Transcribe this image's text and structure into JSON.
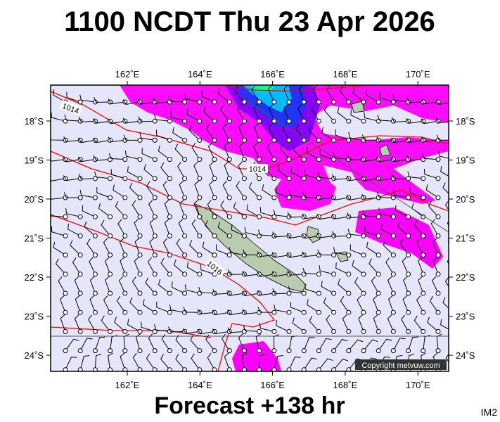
{
  "header": {
    "title": "1100 NCDT Thu 23 Apr 2026"
  },
  "map": {
    "lon_labels": [
      "162˚E",
      "164˚E",
      "166˚E",
      "168˚E",
      "170˚E"
    ],
    "lat_labels": [
      "18˚S",
      "19˚S",
      "20˚S",
      "21˚S",
      "22˚S",
      "23˚S",
      "24˚S"
    ],
    "isobar_labels": [
      "1014",
      "1014",
      "1016"
    ],
    "copyright": "Copyright metvuw.com"
  },
  "footer": {
    "forecast": "Forecast +138 hr",
    "corner": "IM2"
  }
}
